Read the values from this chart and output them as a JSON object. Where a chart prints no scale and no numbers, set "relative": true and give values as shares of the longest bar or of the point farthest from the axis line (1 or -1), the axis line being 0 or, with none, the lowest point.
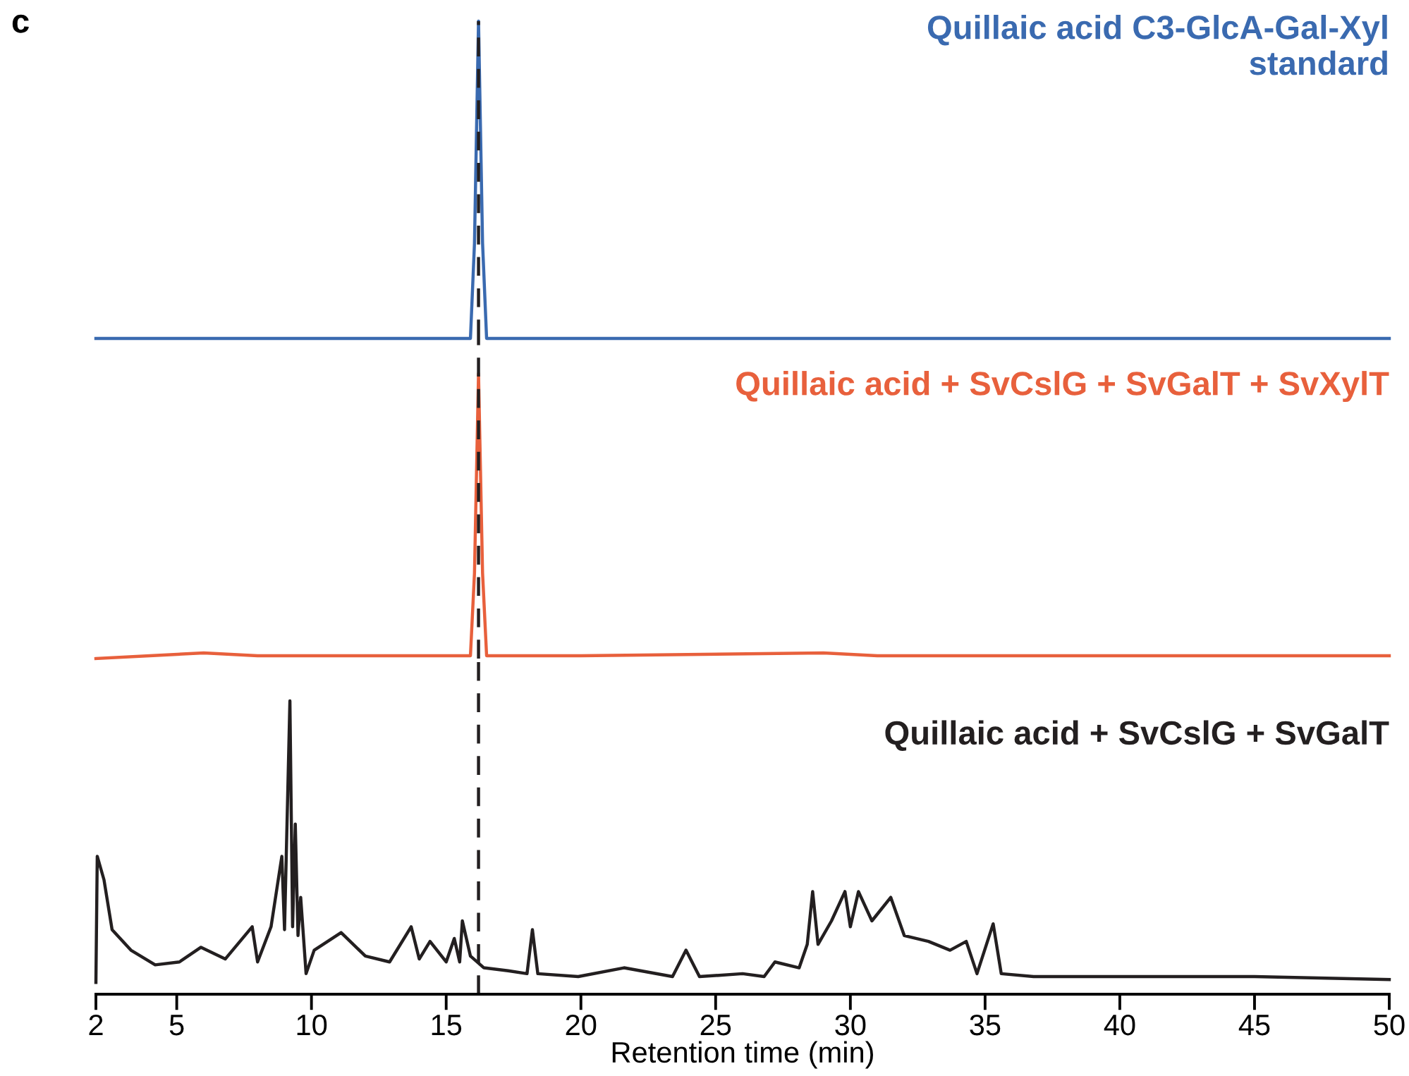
{
  "chart_data": [
    {
      "type": "line",
      "relative": true,
      "tick_labels": false,
      "xlim": [
        2,
        50
      ],
      "annotations": [
        "c"
      ],
      "ref_lines": [
        {
          "axis": "x",
          "value": 16.2,
          "color": "#231f20",
          "line_style": "dashed"
        }
      ],
      "series": [
        {
          "name": "Quillaic acid C3-GlcA-Gal-Xyl\nstandard",
          "color": "#3a6ab0",
          "x": [
            2,
            15.9,
            16.05,
            16.2,
            16.35,
            16.5,
            50
          ],
          "values": [
            0,
            0,
            0.3,
            1,
            0.3,
            0,
            0
          ]
        }
      ]
    },
    {
      "type": "line",
      "relative": true,
      "tick_labels": false,
      "xlim": [
        2,
        50
      ],
      "ref_lines": [
        {
          "axis": "x",
          "value": 16.2,
          "color": "#231f20",
          "line_style": "dashed"
        }
      ],
      "series": [
        {
          "name": "Quillaic acid + SvCslG + SvGalT + SvXylT",
          "color": "#e8603c",
          "x": [
            2,
            4,
            6,
            8,
            10,
            15.9,
            16.05,
            16.2,
            16.35,
            16.5,
            20,
            29,
            31,
            37,
            50
          ],
          "values": [
            0,
            0.01,
            0.02,
            0.01,
            0.01,
            0.01,
            0.3,
            1,
            0.3,
            0.01,
            0.01,
            0.02,
            0.01,
            0.01,
            0.01
          ]
        }
      ]
    },
    {
      "type": "line",
      "relative": true,
      "tick_labels": "x",
      "xlim": [
        2,
        50
      ],
      "xticks": [
        2,
        5,
        10,
        15,
        20,
        25,
        30,
        35,
        40,
        45,
        50
      ],
      "xlabel": "Retention time (min)",
      "ref_lines": [
        {
          "axis": "x",
          "value": 16.2,
          "color": "#231f20",
          "line_style": "dashed"
        }
      ],
      "series": [
        {
          "name": "Quillaic acid + SvCslG + SvGalT",
          "color": "#231f20",
          "x": [
            2,
            2.05,
            2.3,
            2.6,
            3.3,
            4.2,
            5.1,
            5.9,
            6.8,
            7.8,
            8.0,
            8.5,
            8.9,
            9.0,
            9.2,
            9.3,
            9.4,
            9.5,
            9.6,
            9.8,
            10.1,
            11.1,
            12.0,
            12.9,
            13.7,
            14.0,
            14.4,
            15.0,
            15.3,
            15.5,
            15.6,
            15.9,
            16.4,
            17.3,
            18.0,
            18.2,
            18.4,
            19.9,
            21.6,
            23.4,
            23.9,
            24.4,
            26.0,
            26.8,
            27.2,
            28.1,
            28.4,
            28.6,
            28.8,
            29.3,
            29.8,
            30.0,
            30.3,
            30.8,
            31.5,
            32.0,
            32.9,
            33.7,
            34.3,
            34.7,
            35.3,
            35.6,
            36.8,
            40,
            45,
            50
          ],
          "values": [
            0.04,
            0.47,
            0.39,
            0.22,
            0.15,
            0.1,
            0.11,
            0.16,
            0.12,
            0.23,
            0.11,
            0.23,
            0.47,
            0.22,
            1,
            0.23,
            0.58,
            0.2,
            0.33,
            0.07,
            0.15,
            0.21,
            0.13,
            0.11,
            0.23,
            0.12,
            0.18,
            0.11,
            0.19,
            0.11,
            0.25,
            0.13,
            0.09,
            0.08,
            0.07,
            0.22,
            0.07,
            0.06,
            0.09,
            0.06,
            0.15,
            0.06,
            0.07,
            0.06,
            0.11,
            0.09,
            0.17,
            0.35,
            0.17,
            0.25,
            0.35,
            0.23,
            0.35,
            0.25,
            0.33,
            0.2,
            0.18,
            0.15,
            0.18,
            0.07,
            0.24,
            0.07,
            0.06,
            0.06,
            0.06,
            0.05
          ]
        }
      ]
    }
  ]
}
